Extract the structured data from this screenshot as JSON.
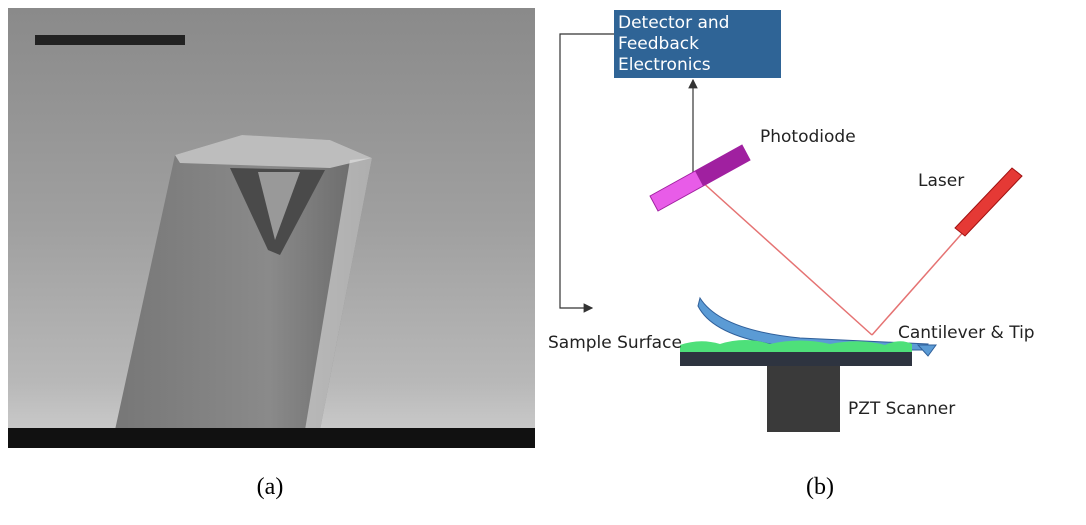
{
  "captions": {
    "a": "(a)",
    "b": "(b)"
  },
  "diagram": {
    "detector": [
      "Detector and",
      "Feedback",
      "Electronics"
    ],
    "photodiode": "Photodiode",
    "laser": "Laser",
    "sample_surface": "Sample Surface",
    "cantilever": "Cantilever & Tip",
    "scanner": "PZT Scanner"
  }
}
